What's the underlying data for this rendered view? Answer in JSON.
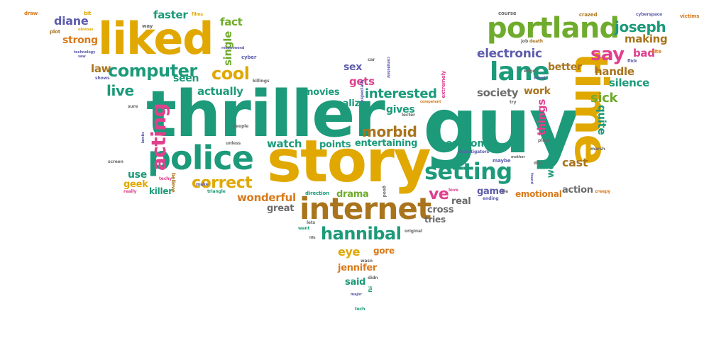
{
  "palette": {
    "teal": "#1c9a7a",
    "gold": "#e0a800",
    "green": "#6fab2c",
    "brown": "#a9741c",
    "purple": "#5e5dad",
    "pink": "#e0408e",
    "gray": "#6b6b6b",
    "orange": "#d87a1c"
  },
  "words": [
    {
      "text": "thriller",
      "color": "teal"
    },
    {
      "text": "guy",
      "color": "teal"
    },
    {
      "text": "story",
      "color": "gold"
    },
    {
      "text": "time",
      "color": "gold"
    },
    {
      "text": "police",
      "color": "teal"
    },
    {
      "text": "internet",
      "color": "brown"
    },
    {
      "text": "liked",
      "color": "gold"
    },
    {
      "text": "portland",
      "color": "green"
    },
    {
      "text": "lane",
      "color": "teal"
    },
    {
      "text": "setting",
      "color": "teal"
    },
    {
      "text": "acting",
      "color": "pink"
    },
    {
      "text": "computer",
      "color": "teal"
    },
    {
      "text": "hannibal",
      "color": "teal"
    },
    {
      "text": "correct",
      "color": "gold"
    },
    {
      "text": "cool",
      "color": "gold"
    },
    {
      "text": "morbid",
      "color": "brown"
    },
    {
      "text": "electronic",
      "color": "purple"
    },
    {
      "text": "joseph",
      "color": "teal"
    },
    {
      "text": "say",
      "color": "pink"
    },
    {
      "text": "interested",
      "color": "teal"
    },
    {
      "text": "live",
      "color": "teal"
    },
    {
      "text": "sick",
      "color": "green"
    },
    {
      "text": "things",
      "color": "pink"
    },
    {
      "text": "quite",
      "color": "teal"
    },
    {
      "text": "society",
      "color": "gray"
    },
    {
      "text": "making",
      "color": "brown"
    },
    {
      "text": "handle",
      "color": "brown"
    },
    {
      "text": "silence",
      "color": "teal"
    },
    {
      "text": "bad",
      "color": "pink"
    },
    {
      "text": "better",
      "color": "brown"
    },
    {
      "text": "diane",
      "color": "purple"
    },
    {
      "text": "strong",
      "color": "orange"
    },
    {
      "text": "faster",
      "color": "teal"
    },
    {
      "text": "fact",
      "color": "green"
    },
    {
      "text": "single",
      "color": "green"
    },
    {
      "text": "law",
      "color": "brown"
    },
    {
      "text": "seen",
      "color": "teal"
    },
    {
      "text": "actually",
      "color": "teal"
    },
    {
      "text": "gets",
      "color": "pink"
    },
    {
      "text": "realize",
      "color": "teal"
    },
    {
      "text": "movies",
      "color": "teal"
    },
    {
      "text": "gives",
      "color": "teal"
    },
    {
      "text": "watch",
      "color": "teal"
    },
    {
      "text": "points",
      "color": "teal"
    },
    {
      "text": "entertaining",
      "color": "teal"
    },
    {
      "text": "oregon",
      "color": "teal"
    },
    {
      "text": "cast",
      "color": "brown"
    },
    {
      "text": "woman",
      "color": "teal"
    },
    {
      "text": "work",
      "color": "brown"
    },
    {
      "text": "ve",
      "color": "pink"
    },
    {
      "text": "game",
      "color": "purple"
    },
    {
      "text": "action",
      "color": "gray"
    },
    {
      "text": "emotional",
      "color": "orange"
    },
    {
      "text": "real",
      "color": "gray"
    },
    {
      "text": "cross",
      "color": "gray"
    },
    {
      "text": "tries",
      "color": "gray"
    },
    {
      "text": "wonderful",
      "color": "orange"
    },
    {
      "text": "great",
      "color": "gray"
    },
    {
      "text": "drama",
      "color": "green"
    },
    {
      "text": "eye",
      "color": "gold"
    },
    {
      "text": "gore",
      "color": "orange"
    },
    {
      "text": "jennifer",
      "color": "orange"
    },
    {
      "text": "said",
      "color": "teal"
    },
    {
      "text": "use",
      "color": "teal"
    },
    {
      "text": "geek",
      "color": "gold"
    },
    {
      "text": "killer",
      "color": "teal"
    },
    {
      "text": "sex",
      "color": "purple"
    },
    {
      "text": "draw",
      "color": "orange"
    },
    {
      "text": "bit",
      "color": "gold"
    },
    {
      "text": "plot",
      "color": "brown"
    },
    {
      "text": "obvious",
      "color": "gold"
    },
    {
      "text": "way",
      "color": "gray"
    },
    {
      "text": "films",
      "color": "gold"
    },
    {
      "text": "technology",
      "color": "purple"
    },
    {
      "text": "saw",
      "color": "purple"
    },
    {
      "text": "recommend",
      "color": "purple"
    },
    {
      "text": "cyber",
      "color": "purple"
    },
    {
      "text": "shows",
      "color": "purple"
    },
    {
      "text": "killings",
      "color": "gray"
    },
    {
      "text": "car",
      "color": "gray"
    },
    {
      "text": "completely",
      "color": "purple"
    },
    {
      "text": "especially",
      "color": "purple"
    },
    {
      "text": "course",
      "color": "gray"
    },
    {
      "text": "crazed",
      "color": "brown"
    },
    {
      "text": "cyberspace",
      "color": "purple"
    },
    {
      "text": "victims",
      "color": "orange"
    },
    {
      "text": "job",
      "color": "gray"
    },
    {
      "text": "death",
      "color": "brown"
    },
    {
      "text": "site",
      "color": "orange"
    },
    {
      "text": "flick",
      "color": "purple"
    },
    {
      "text": "edge",
      "color": "gray"
    },
    {
      "text": "meet",
      "color": "purple"
    },
    {
      "text": "extremely",
      "color": "pink"
    },
    {
      "text": "competent",
      "color": "orange"
    },
    {
      "text": "try",
      "color": "gray"
    },
    {
      "text": "lecter",
      "color": "gray"
    },
    {
      "text": "sure",
      "color": "gray"
    },
    {
      "text": "lambs",
      "color": "purple"
    },
    {
      "text": "people",
      "color": "gray"
    },
    {
      "text": "believe",
      "color": "brown"
    },
    {
      "text": "make",
      "color": "purple"
    },
    {
      "text": "unless",
      "color": "gray"
    },
    {
      "text": "screen",
      "color": "gray"
    },
    {
      "text": "really",
      "color": "pink"
    },
    {
      "text": "techy",
      "color": "pink"
    },
    {
      "text": "triangle",
      "color": "teal"
    },
    {
      "text": "direction",
      "color": "teal"
    },
    {
      "text": "lets",
      "color": "gray"
    },
    {
      "text": "good",
      "color": "gray"
    },
    {
      "text": "love",
      "color": "pink"
    },
    {
      "text": "ending",
      "color": "purple"
    },
    {
      "text": "die",
      "color": "gray"
    },
    {
      "text": "maybe",
      "color": "purple"
    },
    {
      "text": "investigators",
      "color": "purple"
    },
    {
      "text": "mother",
      "color": "gray"
    },
    {
      "text": "plays",
      "color": "gray"
    },
    {
      "text": "don",
      "color": "gray"
    },
    {
      "text": "marsh",
      "color": "gray"
    },
    {
      "text": "creepy",
      "color": "orange"
    },
    {
      "text": "want",
      "color": "teal"
    },
    {
      "text": "life",
      "color": "gray"
    },
    {
      "text": "original",
      "color": "gray"
    },
    {
      "text": "wasn",
      "color": "gray"
    },
    {
      "text": "didn",
      "color": "gray"
    },
    {
      "text": "fbi",
      "color": "teal"
    },
    {
      "text": "major",
      "color": "purple"
    },
    {
      "text": "tech",
      "color": "teal"
    },
    {
      "text": "found",
      "color": "purple"
    }
  ]
}
